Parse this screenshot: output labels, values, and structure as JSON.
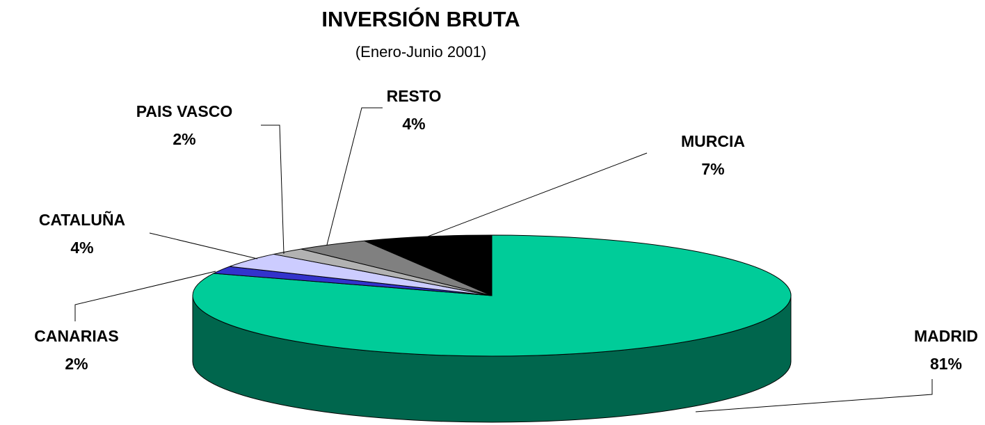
{
  "chart_data": {
    "type": "pie",
    "title": "INVERSIÓN BRUTA",
    "subtitle": "(Enero-Junio 2001)",
    "categories": [
      "MADRID",
      "CANARIAS",
      "CATALUÑA",
      "PAIS VASCO",
      "RESTO",
      "MURCIA"
    ],
    "values": [
      81,
      2,
      4,
      2,
      4,
      7
    ],
    "value_labels": [
      "81%",
      "2%",
      "4%",
      "2%",
      "4%",
      "7%"
    ],
    "colors": [
      "#00cc99",
      "#3333cc",
      "#ccccff",
      "#b2b2b2",
      "#808080",
      "#000000"
    ]
  }
}
